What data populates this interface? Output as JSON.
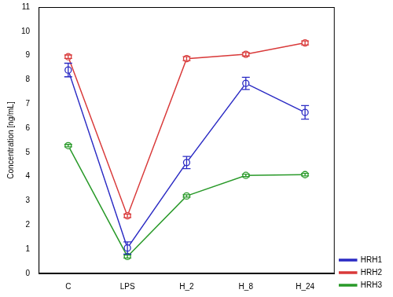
{
  "chart_data": {
    "type": "line",
    "y_label": "Concentration [ng/mL]",
    "categories": [
      "C",
      "LPS",
      "H_2",
      "H_8",
      "H_24"
    ],
    "ylim": [
      0,
      11
    ],
    "yticks": [
      0,
      1,
      2,
      3,
      4,
      5,
      6,
      7,
      8,
      9,
      10,
      11
    ],
    "grid": false,
    "legend": "bottom-right",
    "series": [
      {
        "name": "HRH1",
        "color": "#2b2bc4",
        "marker": "circle",
        "line_style": "solid",
        "values": [
          8.4,
          1.05,
          4.58,
          7.85,
          6.65
        ],
        "errors": [
          0.28,
          0.25,
          0.25,
          0.25,
          0.28
        ]
      },
      {
        "name": "HRH2",
        "color": "#d93a3a",
        "marker": "circle",
        "line_style": "solid",
        "values": [
          8.95,
          2.38,
          8.87,
          9.05,
          9.52
        ],
        "errors": [
          0.07,
          0.07,
          0.08,
          0.07,
          0.08
        ]
      },
      {
        "name": "HRH3",
        "color": "#2a9a2a",
        "marker": "circle",
        "line_style": "solid",
        "values": [
          5.28,
          0.7,
          3.2,
          4.05,
          4.08
        ],
        "errors": [
          0.05,
          0.06,
          0.05,
          0.05,
          0.05
        ]
      }
    ]
  }
}
